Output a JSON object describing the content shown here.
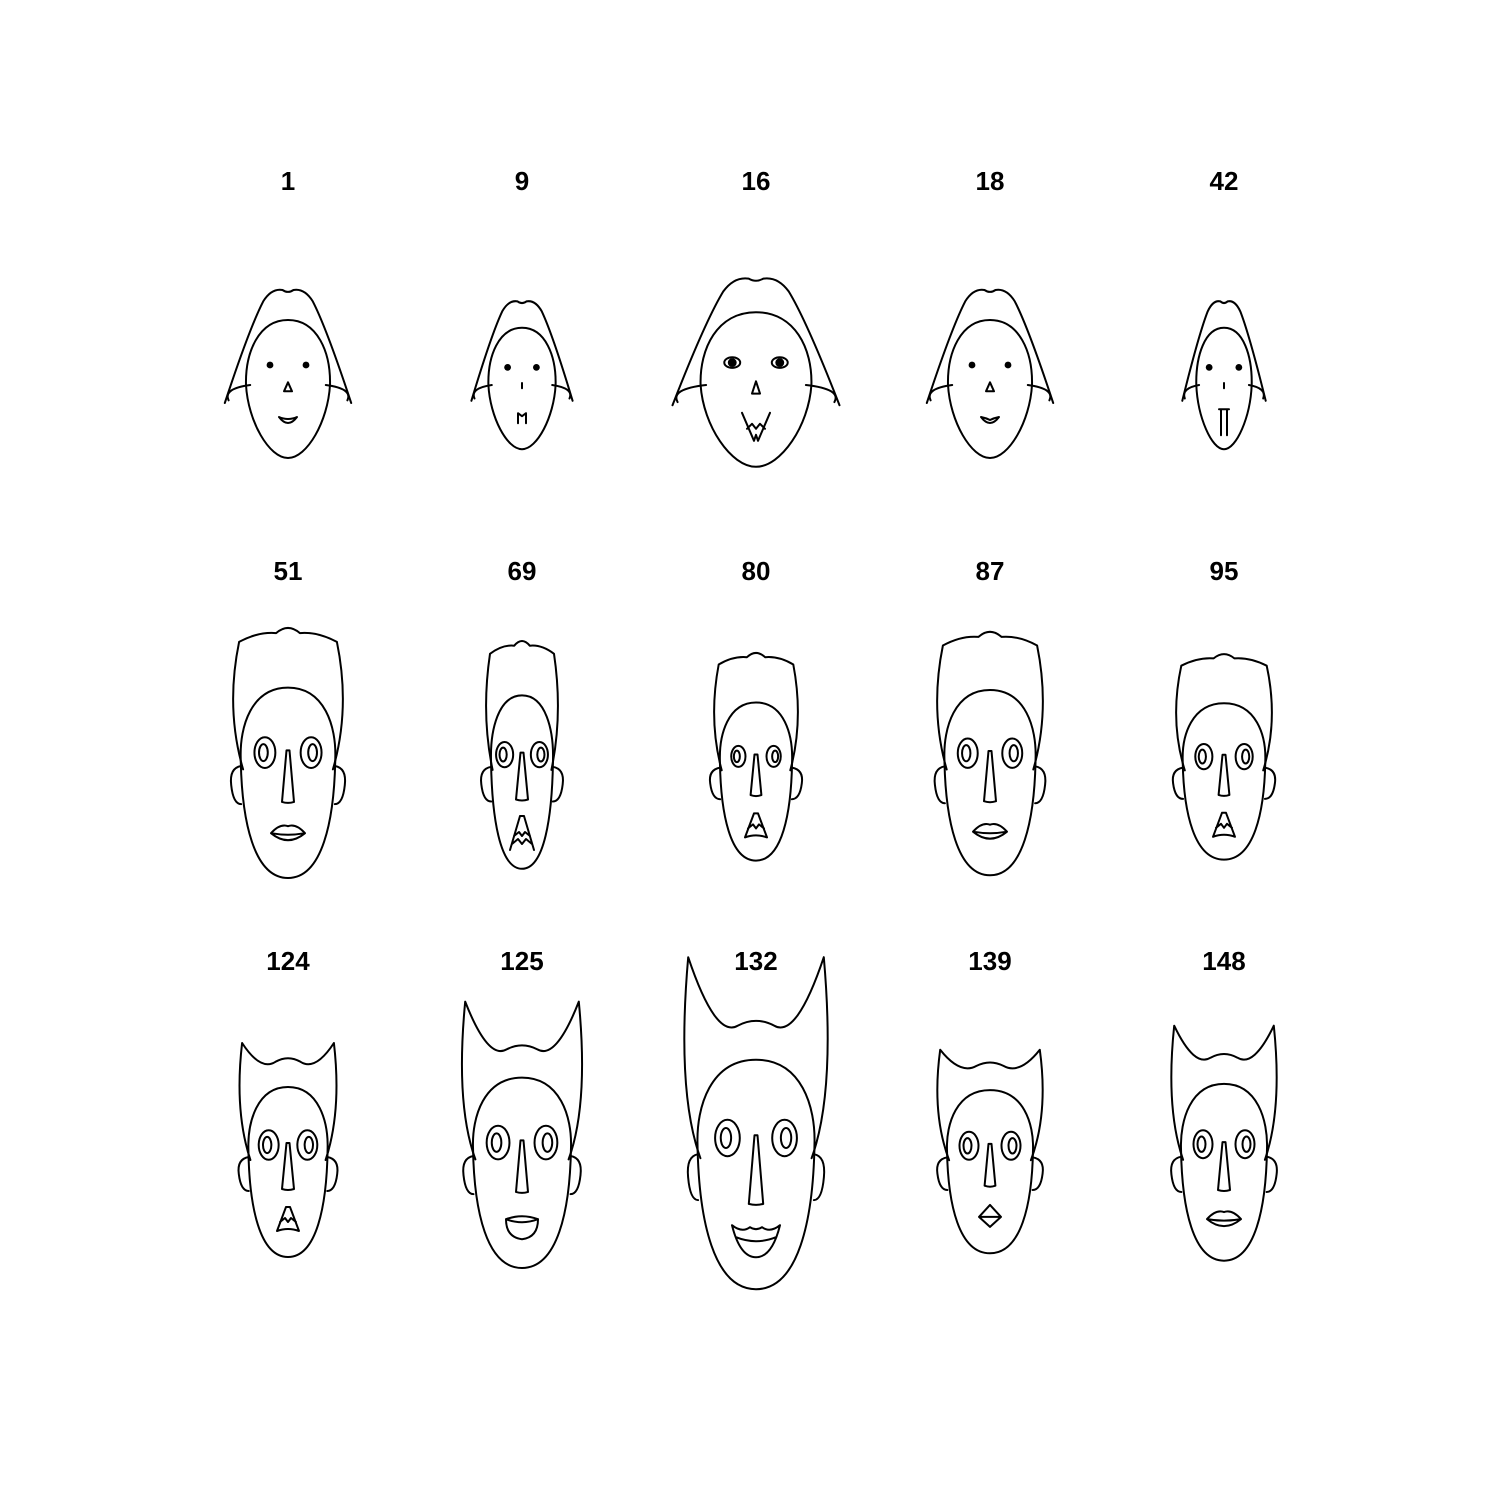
{
  "chart_data": {
    "type": "chernoff-faces",
    "title": "",
    "layout": {
      "rows": 3,
      "cols": 5
    },
    "faces": [
      {
        "label": "1",
        "type": "A",
        "s": 1.0,
        "w": 1.0,
        "eye": 1.0,
        "nose": 0.9,
        "mouth": "smile-small"
      },
      {
        "label": "9",
        "type": "A",
        "s": 0.88,
        "w": 0.8,
        "eye": 1.0,
        "nose": 0.6,
        "mouth": "m-small"
      },
      {
        "label": "16",
        "type": "A",
        "s": 1.12,
        "w": 1.32,
        "eye": 1.3,
        "nose": 1.1,
        "mouth": "v-wide"
      },
      {
        "label": "18",
        "type": "A",
        "s": 1.0,
        "w": 1.0,
        "eye": 1.0,
        "nose": 0.9,
        "mouth": "smile-lip"
      },
      {
        "label": "42",
        "type": "A",
        "s": 0.88,
        "w": 0.66,
        "eye": 1.0,
        "nose": 0.6,
        "mouth": "vertical"
      },
      {
        "label": "51",
        "type": "B",
        "s": 1.12,
        "w": 1.1,
        "eye": 1.1,
        "nose": 1.0,
        "mouth": "lips"
      },
      {
        "label": "69",
        "type": "B",
        "s": 1.02,
        "w": 0.72,
        "eye": 0.9,
        "nose": 1.0,
        "mouth": "teeth-tall"
      },
      {
        "label": "80",
        "type": "B",
        "s": 0.93,
        "w": 0.84,
        "eye": 0.75,
        "nose": 0.9,
        "mouth": "teeth-small"
      },
      {
        "label": "87",
        "type": "B",
        "s": 1.09,
        "w": 1.06,
        "eye": 1.05,
        "nose": 1.0,
        "mouth": "lips"
      },
      {
        "label": "95",
        "type": "B",
        "s": 0.92,
        "w": 0.96,
        "eye": 0.9,
        "nose": 0.9,
        "mouth": "teeth-small"
      },
      {
        "label": "124",
        "type": "C",
        "s": 1.0,
        "w": 0.92,
        "eye": 1.05,
        "nose": 1.0,
        "mouth": "teeth-small",
        "horn": 0.2
      },
      {
        "label": "125",
        "type": "C",
        "s": 1.12,
        "w": 1.14,
        "eye": 1.2,
        "nose": 1.0,
        "mouth": "open-round",
        "horn": 0.8
      },
      {
        "label": "132",
        "type": "C",
        "s": 1.35,
        "w": 1.36,
        "eye": 1.3,
        "nose": 1.2,
        "mouth": "grin",
        "horn": 1.0
      },
      {
        "label": "139",
        "type": "C",
        "s": 0.96,
        "w": 1.0,
        "eye": 1.0,
        "nose": 0.9,
        "mouth": "diamond",
        "horn": 0.15
      },
      {
        "label": "148",
        "type": "C",
        "s": 1.04,
        "w": 1.0,
        "eye": 1.0,
        "nose": 1.0,
        "mouth": "lips",
        "horn": 0.5
      }
    ]
  }
}
